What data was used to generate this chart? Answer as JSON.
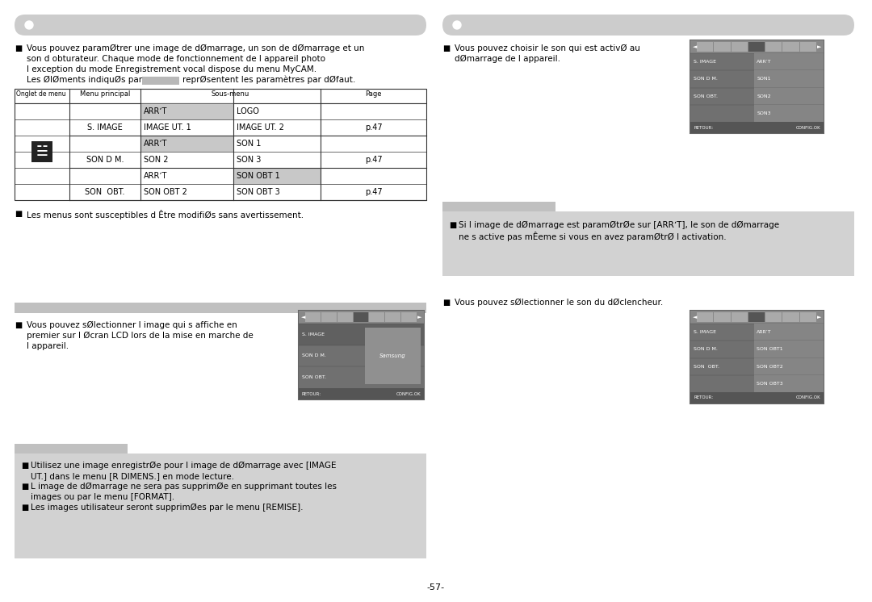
{
  "bg_color": "#ffffff",
  "gray_bar": "#cccccc",
  "gray_light": "#d0d0d0",
  "gray_medium": "#c0c0c0",
  "gray_shade": "#c8c8c8",
  "gray_note": "#d2d2d2",
  "table_border": "#333333",
  "section1_lines": [
    "Vous pouvez paramØtrer une image de dØmarrage, un son de dØmarrage et un",
    "son d obturateur. Chaque mode de fonctionnement de l appareil photo",
    "l exception du mode Enregistrement vocal dispose du menu MyCAM.",
    "Les ØlØments indiquØs par"
  ],
  "section1_line4_cont": "reprØsentent les paramètres par dØfaut.",
  "table_header": [
    "Onglet de menu",
    "Menu principal",
    "Sous-menu",
    "Page"
  ],
  "table_rows": [
    {
      "main": "S. IMAGE",
      "sub1": "ARRʼT",
      "sub2": "LOGO",
      "page": "p.47",
      "sh1": true,
      "sh2": false
    },
    {
      "main": "S. IMAGE",
      "sub1": "IMAGE UT. 1",
      "sub2": "IMAGE UT. 2",
      "page": "p.47",
      "sh1": false,
      "sh2": false
    },
    {
      "main": "SON D M.",
      "sub1": "ARRʼT",
      "sub2": "SON 1",
      "page": "p.47",
      "sh1": true,
      "sh2": false
    },
    {
      "main": "SON D M.",
      "sub1": "SON 2",
      "sub2": "SON 3",
      "page": "p.47",
      "sh1": false,
      "sh2": false
    },
    {
      "main": "SON  OBT.",
      "sub1": "ARRʼT",
      "sub2": "SON OBT 1",
      "page": "p.47",
      "sh1": false,
      "sh2": true
    },
    {
      "main": "SON  OBT.",
      "sub1": "SON OBT 2",
      "sub2": "SON OBT 3",
      "page": "p.47",
      "sh1": false,
      "sh2": false
    }
  ],
  "section2_text": "Les menus sont susceptibles d Être modifiØs sans avertissement.",
  "section3_lines": [
    "Vous pouvez sØlectionner l image qui s affiche en",
    "premier sur l Øcran LCD lors de la mise en marche de",
    "l appareil."
  ],
  "note_lines": [
    "Utilisez une image enregistrØe pour l image de dØmarrage avec [IMAGE",
    "UT.] dans le menu [R DIMENS.] en mode lecture.",
    "L image de dØmarrage ne sera pas supprimØe en supprimant toutes les",
    "images ou par le menu [FORMAT].",
    "Les images utilisateur seront supprimØes par le menu [REMISE]."
  ],
  "r_section1_lines": [
    "Vous pouvez choisir le son qui est activØ au",
    "dØmarrage de l appareil."
  ],
  "r_note_lines": [
    "Si l image de dØmarrage est paramØtrØe sur [ARRʼT], le son de dØmarrage",
    "ne s active pas mÊeme si vous en avez paramØtrØ l activation."
  ],
  "r_section3_text": "Vous pouvez sØlectionner le son du dØclencheur.",
  "cam_screen1_menu": [
    "S. IMAGE",
    "SON D M.",
    "SON OBT."
  ],
  "cam_screen1_vals": [
    "",
    "",
    ""
  ],
  "cam_screen2_menu": [
    "S. IMAGE",
    "SON D M.",
    "SON OBT.",
    ""
  ],
  "cam_screen2_vals": [
    "ARRʼT",
    "SON1",
    "SON2",
    "SON3"
  ],
  "cam_screen3_menu": [
    "S. IMAGE",
    "SON D M.",
    "SON  OBT.",
    ""
  ],
  "cam_screen3_vals": [
    "ARRʼT",
    "SON OBT1",
    "SON OBT2",
    "SON OBT3"
  ],
  "page_number": "-57-"
}
